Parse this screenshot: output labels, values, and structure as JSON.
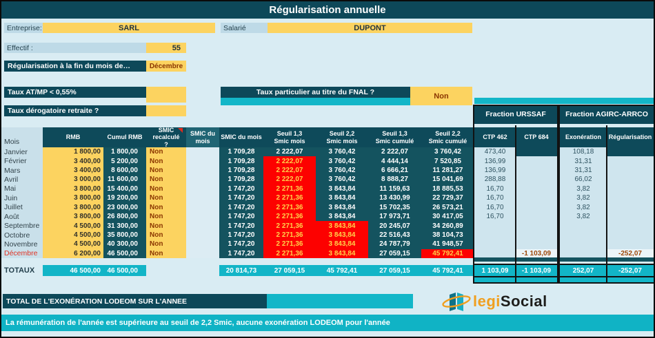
{
  "title": "Régularisation annuelle",
  "info": {
    "entreprise_label": "Entreprise:",
    "entreprise_value": "SARL",
    "salarie_label": "Salarié",
    "salarie_value": "DUPONT",
    "effectif_label": "Effectif :",
    "effectif_value": "55",
    "regularisation_label": "Régularisation à la fin du mois de…",
    "regularisation_value": "Décembre",
    "taux_atmp_label": "Taux AT/MP < 0,55%",
    "taux_atmp_value": "",
    "fnal_label": "Taux particulier au titre du FNAL ?",
    "fnal_value": "Non",
    "taux_derogatoire_label": "Taux dérogatoire retraite ?",
    "taux_derogatoire_value": ""
  },
  "fractions": {
    "urssaf_title": "Fraction URSSAF",
    "agirc_title": "Fraction AGIRC-ARRCO"
  },
  "table": {
    "headers": {
      "mois": "Mois",
      "rmb": "RMB",
      "cumul": "Cumul RMB",
      "rec": "SMIC recalculé ?",
      "smica": "SMIC du mois",
      "smicb": "SMIC du mois",
      "s13m": "Seuil 1,3 Smic mois",
      "s22m": "Seuil 2,2 Smic mois",
      "s13c": "Seuil 1,3 Smic cumulé",
      "s22c": "Seuil 2,2 Smic cumulé",
      "ctp462": "CTP 462",
      "ctp684": "CTP 684",
      "exo": "Exonération",
      "reg": "Régularisation"
    },
    "rows": [
      {
        "m": "Janvier",
        "month_red": false,
        "rmb": "1 800,00",
        "cumul": "1 800,00",
        "non": "Non",
        "smic": "1 709,28",
        "s13m": "2 222,07",
        "s13m_red": false,
        "s22m": "3 760,42",
        "s22m_red": false,
        "s13c": "2 222,07",
        "s22c": "3 760,42",
        "s22c_red": false,
        "ctp462": "473,40",
        "ctp684": "",
        "ctp684_style": "dark",
        "exo": "108,18",
        "reg": "",
        "reg_style": "dark"
      },
      {
        "m": "Février",
        "month_red": false,
        "rmb": "3 400,00",
        "cumul": "5 200,00",
        "non": "Non",
        "smic": "1 709,28",
        "s13m": "2 222,07",
        "s13m_red": true,
        "s22m": "3 760,42",
        "s22m_red": false,
        "s13c": "4 444,14",
        "s22c": "7 520,85",
        "s22c_red": false,
        "ctp462": "136,99",
        "ctp684": "",
        "ctp684_style": "",
        "exo": "31,31",
        "reg": "",
        "reg_style": ""
      },
      {
        "m": "Mars",
        "month_red": false,
        "rmb": "3 400,00",
        "cumul": "8 600,00",
        "non": "Non",
        "smic": "1 709,28",
        "s13m": "2 222,07",
        "s13m_red": true,
        "s22m": "3 760,42",
        "s22m_red": false,
        "s13c": "6 666,21",
        "s22c": "11 281,27",
        "s22c_red": false,
        "ctp462": "136,99",
        "ctp684": "",
        "ctp684_style": "",
        "exo": "31,31",
        "reg": "",
        "reg_style": ""
      },
      {
        "m": "Avril",
        "month_red": false,
        "rmb": "3 000,00",
        "cumul": "11 600,00",
        "non": "Non",
        "smic": "1 709,28",
        "s13m": "2 222,07",
        "s13m_red": true,
        "s22m": "3 760,42",
        "s22m_red": false,
        "s13c": "8 888,27",
        "s22c": "15 041,69",
        "s22c_red": false,
        "ctp462": "288,88",
        "ctp684": "",
        "ctp684_style": "",
        "exo": "66,02",
        "reg": "",
        "reg_style": ""
      },
      {
        "m": "Mai",
        "month_red": false,
        "rmb": "3 800,00",
        "cumul": "15 400,00",
        "non": "Non",
        "smic": "1 747,20",
        "s13m": "2 271,36",
        "s13m_red": true,
        "s22m": "3 843,84",
        "s22m_red": false,
        "s13c": "11 159,63",
        "s22c": "18 885,53",
        "s22c_red": false,
        "ctp462": "16,70",
        "ctp684": "",
        "ctp684_style": "",
        "exo": "3,82",
        "reg": "",
        "reg_style": ""
      },
      {
        "m": "Juin",
        "month_red": false,
        "rmb": "3 800,00",
        "cumul": "19 200,00",
        "non": "Non",
        "smic": "1 747,20",
        "s13m": "2 271,36",
        "s13m_red": true,
        "s22m": "3 843,84",
        "s22m_red": false,
        "s13c": "13 430,99",
        "s22c": "22 729,37",
        "s22c_red": false,
        "ctp462": "16,70",
        "ctp684": "",
        "ctp684_style": "",
        "exo": "3,82",
        "reg": "",
        "reg_style": ""
      },
      {
        "m": "Juillet",
        "month_red": false,
        "rmb": "3 800,00",
        "cumul": "23 000,00",
        "non": "Non",
        "smic": "1 747,20",
        "s13m": "2 271,36",
        "s13m_red": true,
        "s22m": "3 843,84",
        "s22m_red": false,
        "s13c": "15 702,35",
        "s22c": "26 573,21",
        "s22c_red": false,
        "ctp462": "16,70",
        "ctp684": "",
        "ctp684_style": "",
        "exo": "3,82",
        "reg": "",
        "reg_style": ""
      },
      {
        "m": "Août",
        "month_red": false,
        "rmb": "3 800,00",
        "cumul": "26 800,00",
        "non": "Non",
        "smic": "1 747,20",
        "s13m": "2 271,36",
        "s13m_red": true,
        "s22m": "3 843,84",
        "s22m_red": false,
        "s13c": "17 973,71",
        "s22c": "30 417,05",
        "s22c_red": false,
        "ctp462": "16,70",
        "ctp684": "",
        "ctp684_style": "",
        "exo": "3,82",
        "reg": "",
        "reg_style": ""
      },
      {
        "m": "Septembre",
        "month_red": false,
        "rmb": "4 500,00",
        "cumul": "31 300,00",
        "non": "Non",
        "smic": "1 747,20",
        "s13m": "2 271,36",
        "s13m_red": true,
        "s22m": "3 843,84",
        "s22m_red": true,
        "s13c": "20 245,07",
        "s22c": "34 260,89",
        "s22c_red": false,
        "ctp462": "",
        "ctp684": "",
        "ctp684_style": "",
        "exo": "",
        "reg": "",
        "reg_style": ""
      },
      {
        "m": "Octobre",
        "month_red": false,
        "rmb": "4 500,00",
        "cumul": "35 800,00",
        "non": "Non",
        "smic": "1 747,20",
        "s13m": "2 271,36",
        "s13m_red": true,
        "s22m": "3 843,84",
        "s22m_red": true,
        "s13c": "22 516,43",
        "s22c": "38 104,73",
        "s22c_red": false,
        "ctp462": "",
        "ctp684": "",
        "ctp684_style": "",
        "exo": "",
        "reg": "",
        "reg_style": ""
      },
      {
        "m": "Novembre",
        "month_red": false,
        "rmb": "4 500,00",
        "cumul": "40 300,00",
        "non": "Non",
        "smic": "1 747,20",
        "s13m": "2 271,36",
        "s13m_red": true,
        "s22m": "3 843,84",
        "s22m_red": true,
        "s13c": "24 787,79",
        "s22c": "41 948,57",
        "s22c_red": false,
        "ctp462": "",
        "ctp684": "",
        "ctp684_style": "",
        "exo": "",
        "reg": "",
        "reg_style": ""
      },
      {
        "m": "Décembre",
        "month_red": true,
        "rmb": "6 200,00",
        "cumul": "46 500,00",
        "non": "Non",
        "smic": "1 747,20",
        "s13m": "2 271,36",
        "s13m_red": true,
        "s22m": "3 843,84",
        "s22m_red": true,
        "s13c": "27 059,15",
        "s22c": "45 792,41",
        "s22c_red": true,
        "ctp462": "",
        "ctp684": "-1 103,09",
        "ctp684_style": "hl",
        "exo": "",
        "reg": "-252,07",
        "reg_style": "hl"
      }
    ],
    "totals": {
      "label": "TOTAUX",
      "rmb": "46 500,00",
      "cumul": "46 500,00",
      "smic": "20 814,73",
      "s13m": "27 059,15",
      "s22m": "45 792,41",
      "s13c": "27 059,15",
      "s22c": "45 792,41",
      "ctp462": "1 103,09",
      "ctp684": "-1 103,09",
      "exo": "252,07",
      "reg": "-252,07"
    }
  },
  "footer": {
    "lodeom_label": "TOTAL DE L'EXONÉRATION LODEOM SUR L'ANNEE",
    "lodeom_value": "",
    "message": "La rémunération de l'année est supérieure au seuil de 2,2 Smic, aucune exonération LODEOM pour l'année",
    "logo_left": "legi",
    "logo_right": "Social"
  },
  "colors": {
    "dark_teal": "#0d4859",
    "data_teal": "#14535f",
    "cyan_accent": "#12b5c7",
    "input_yellow": "#fcd360",
    "alert_red": "#fd0100",
    "alert_text": "#ffd24a",
    "negative_text": "#9c4708",
    "month_alert": "#e03324",
    "logo_orange": "#f09f1f"
  }
}
